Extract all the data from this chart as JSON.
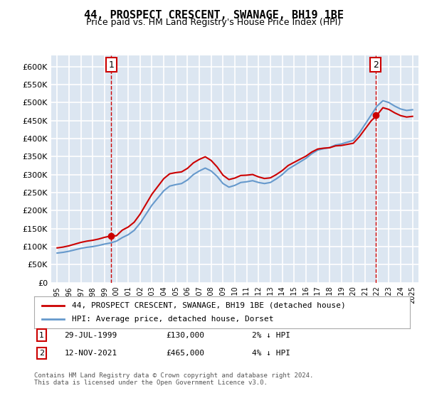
{
  "title": "44, PROSPECT CRESCENT, SWANAGE, BH19 1BE",
  "subtitle": "Price paid vs. HM Land Registry's House Price Index (HPI)",
  "legend_line1": "44, PROSPECT CRESCENT, SWANAGE, BH19 1BE (detached house)",
  "legend_line2": "HPI: Average price, detached house, Dorset",
  "annotation1_label": "1",
  "annotation1_date": "29-JUL-1999",
  "annotation1_price": "£130,000",
  "annotation1_hpi": "2% ↓ HPI",
  "annotation2_label": "2",
  "annotation2_date": "12-NOV-2021",
  "annotation2_price": "£465,000",
  "annotation2_hpi": "4% ↓ HPI",
  "footer": "Contains HM Land Registry data © Crown copyright and database right 2024.\nThis data is licensed under the Open Government Licence v3.0.",
  "ylim": [
    0,
    630000
  ],
  "yticks": [
    0,
    50000,
    100000,
    150000,
    200000,
    250000,
    300000,
    350000,
    400000,
    450000,
    500000,
    550000,
    600000
  ],
  "bg_color": "#dce6f1",
  "grid_color": "#ffffff",
  "hpi_color": "#6699cc",
  "price_color": "#cc0000",
  "annotation_box_color": "#cc0000",
  "sale1_year": 1999.57,
  "sale1_price": 130000,
  "sale2_year": 2021.87,
  "sale2_price": 465000
}
